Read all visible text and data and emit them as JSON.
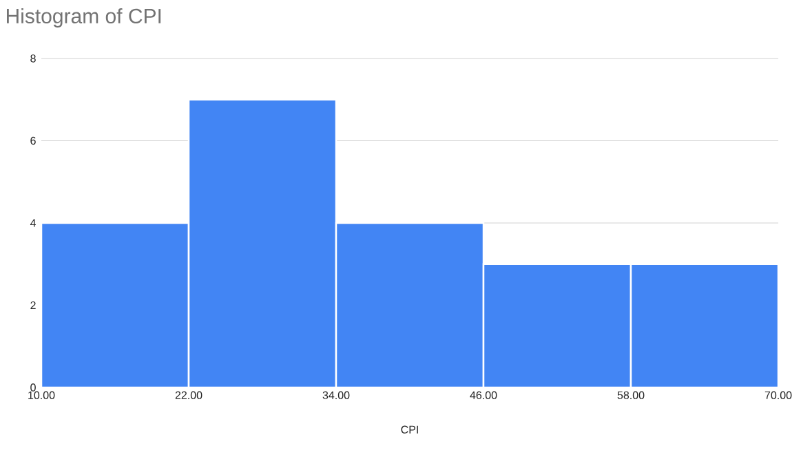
{
  "chart_data": {
    "type": "histogram",
    "title": "Histogram of CPI",
    "xlabel": "CPI",
    "bins": [
      10,
      22,
      34,
      46,
      58,
      70
    ],
    "values": [
      4,
      7,
      4,
      3,
      3
    ],
    "color": "#4285f4",
    "xlim": [
      10,
      70
    ],
    "xticks": [
      {
        "value": 10,
        "label": "10.00"
      },
      {
        "value": 22,
        "label": "22.00"
      },
      {
        "value": 34,
        "label": "34.00"
      },
      {
        "value": 46,
        "label": "46.00"
      },
      {
        "value": 58,
        "label": "58.00"
      },
      {
        "value": 70,
        "label": "70.00"
      }
    ],
    "ylim": [
      0,
      8
    ],
    "yticks": [
      0,
      2,
      4,
      6,
      8
    ],
    "grid": "y"
  }
}
